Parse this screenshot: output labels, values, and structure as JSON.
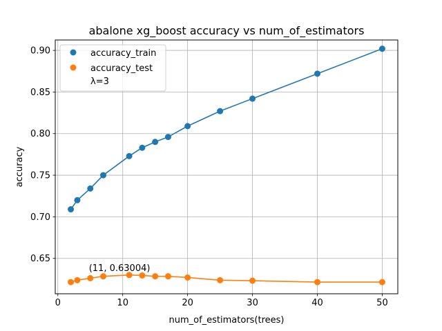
{
  "chart_data": {
    "type": "scatter",
    "title": "abalone xg_boost accuracy vs num_of_estimators",
    "xlabel": "num_of_estimators(trees)",
    "ylabel": "accuracy",
    "xlim": [
      -0.4,
      52.4
    ],
    "ylim": [
      0.6075,
      0.9125
    ],
    "xticks": [
      0,
      10,
      20,
      30,
      40,
      50
    ],
    "yticks": [
      0.65,
      0.7,
      0.75,
      0.8,
      0.85,
      0.9
    ],
    "ytick_labels": [
      "0.65",
      "0.70",
      "0.75",
      "0.80",
      "0.85",
      "0.90"
    ],
    "grid": true,
    "legend_position": "top-left",
    "legend_extra": "λ=3",
    "x": [
      2,
      3,
      5,
      7,
      11,
      13,
      15,
      17,
      20,
      25,
      30,
      40,
      50
    ],
    "series": [
      {
        "name": "accuracy_train",
        "color": "#1f77b4",
        "values": [
          0.709,
          0.72,
          0.734,
          0.75,
          0.773,
          0.783,
          0.79,
          0.796,
          0.809,
          0.827,
          0.842,
          0.872,
          0.902
        ]
      },
      {
        "name": "accuracy_test",
        "color": "#ff7f0e",
        "values": [
          0.6215,
          0.6238,
          0.6262,
          0.6285,
          0.63004,
          0.6295,
          0.6285,
          0.6285,
          0.627,
          0.6238,
          0.6232,
          0.6215,
          0.6215
        ]
      }
    ],
    "annotations": [
      {
        "text": "(11, 0.63004)",
        "x": 11,
        "y": 0.63004
      }
    ]
  }
}
